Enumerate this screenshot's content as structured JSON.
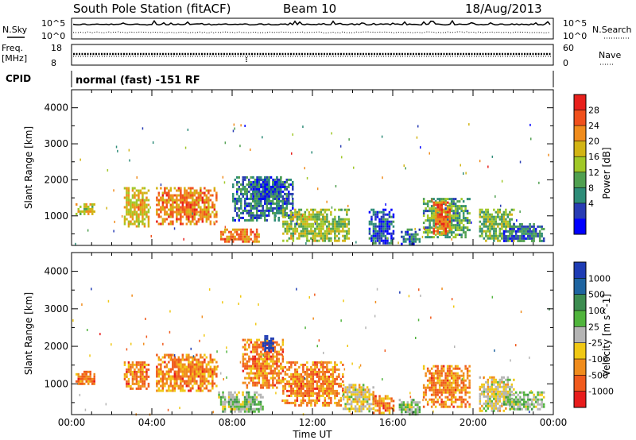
{
  "header": {
    "station": "South Pole Station (fitACF)",
    "beam": "Beam 10",
    "date": "18/Aug/2013"
  },
  "top_panels": {
    "nsky_label": "N.Sky",
    "nsky_ticks": [
      "10^5",
      "10^0"
    ],
    "nsearch_label": "N.Search",
    "nsearch_ticks": [
      "10^5",
      "10^0"
    ],
    "freq_label_1": "Freq.",
    "freq_label_2": "[MHz]",
    "freq_ticks": [
      "18",
      "8"
    ],
    "nave_label": "Nave",
    "nave_ticks": [
      "60",
      "0"
    ],
    "cpid_label": "CPID",
    "cpid_text": "normal (fast) -151 RF"
  },
  "x_axis": {
    "title": "Time UT",
    "ticks": [
      "00:00",
      "04:00",
      "08:00",
      "12:00",
      "16:00",
      "20:00",
      "00:00"
    ]
  },
  "power_colorbar": {
    "title": "Power [dB]",
    "labels": [
      "28",
      "24",
      "20",
      "16",
      "12",
      "8",
      "4"
    ],
    "colors": [
      "#e8201c",
      "#f0501c",
      "#f08c1c",
      "#d2b414",
      "#a0c828",
      "#50a050",
      "#2d8c78",
      "#283cb4",
      "#0000ff"
    ]
  },
  "velocity_colorbar": {
    "title": "Velocity [m s^-1]",
    "labels": [
      "1000",
      "500",
      "100",
      "25",
      "-25",
      "-100",
      "-500",
      "-1000"
    ],
    "colors": [
      "#1e3cb4",
      "#1e64a0",
      "#3c8c50",
      "#50b43c",
      "#b4b4b4",
      "#f0c814",
      "#f08c1c",
      "#f05a1c",
      "#e81c1c"
    ]
  },
  "chart_data": [
    {
      "type": "heatmap",
      "name": "power",
      "xlabel": "Time UT",
      "ylabel": "Slant Range [km]",
      "xlim": [
        0,
        24
      ],
      "ylim": [
        180,
        4500
      ],
      "yticks": [
        "1000",
        "2000",
        "3000",
        "4000"
      ],
      "zlabel": "Power [dB]",
      "zlim": [
        0,
        32
      ],
      "blobs": [
        {
          "t0": 0.2,
          "t1": 1.1,
          "r0": 1050,
          "r1": 1350,
          "v": 18
        },
        {
          "t0": 2.6,
          "t1": 3.8,
          "r0": 700,
          "r1": 1800,
          "v": 20
        },
        {
          "t0": 4.2,
          "t1": 7.2,
          "r0": 800,
          "r1": 1800,
          "v": 24
        },
        {
          "t0": 7.4,
          "t1": 9.3,
          "r0": 300,
          "r1": 650,
          "v": 24
        },
        {
          "t0": 8.0,
          "t1": 11.0,
          "r0": 900,
          "r1": 2100,
          "v": 8
        },
        {
          "t0": 9.0,
          "t1": 10.5,
          "r0": 1500,
          "r1": 2100,
          "v": 6
        },
        {
          "t0": 10.5,
          "t1": 13.8,
          "r0": 300,
          "r1": 1200,
          "v": 16
        },
        {
          "t0": 14.8,
          "t1": 16.0,
          "r0": 250,
          "r1": 1200,
          "v": 6
        },
        {
          "t0": 16.4,
          "t1": 17.3,
          "r0": 250,
          "r1": 650,
          "v": 8
        },
        {
          "t0": 17.5,
          "t1": 19.8,
          "r0": 400,
          "r1": 1500,
          "v": 12
        },
        {
          "t0": 18.0,
          "t1": 18.8,
          "r0": 500,
          "r1": 1400,
          "v": 24
        },
        {
          "t0": 20.3,
          "t1": 22.0,
          "r0": 300,
          "r1": 1200,
          "v": 14
        },
        {
          "t0": 21.5,
          "t1": 23.5,
          "r0": 300,
          "r1": 800,
          "v": 8
        }
      ]
    },
    {
      "type": "heatmap",
      "name": "velocity",
      "xlabel": "Time UT",
      "ylabel": "Slant Range [km]",
      "xlim": [
        0,
        24
      ],
      "ylim": [
        180,
        4500
      ],
      "yticks": [
        "1000",
        "2000",
        "3000",
        "4000"
      ],
      "zlabel": "Velocity [m s^-1]",
      "zlim": [
        -1000,
        1000
      ],
      "blobs": [
        {
          "t0": 0.2,
          "t1": 1.1,
          "r0": 1000,
          "r1": 1350,
          "v": -500
        },
        {
          "t0": 2.6,
          "t1": 3.8,
          "r0": 900,
          "r1": 1600,
          "v": -500
        },
        {
          "t0": 4.2,
          "t1": 7.2,
          "r0": 800,
          "r1": 1800,
          "v": -500
        },
        {
          "t0": 7.3,
          "t1": 9.5,
          "r0": 250,
          "r1": 800,
          "v": 100
        },
        {
          "t0": 8.5,
          "t1": 10.5,
          "r0": 900,
          "r1": 2200,
          "v": -500
        },
        {
          "t0": 9.5,
          "t1": 10.0,
          "r0": 1900,
          "r1": 2300,
          "v": 1000
        },
        {
          "t0": 10.5,
          "t1": 13.5,
          "r0": 400,
          "r1": 1600,
          "v": -500
        },
        {
          "t0": 13.5,
          "t1": 15.0,
          "r0": 300,
          "r1": 1000,
          "v": -100
        },
        {
          "t0": 15.0,
          "t1": 16.0,
          "r0": 250,
          "r1": 700,
          "v": -500
        },
        {
          "t0": 16.3,
          "t1": 17.3,
          "r0": 200,
          "r1": 600,
          "v": 100
        },
        {
          "t0": 17.5,
          "t1": 19.8,
          "r0": 400,
          "r1": 1500,
          "v": -500
        },
        {
          "t0": 20.3,
          "t1": 22.0,
          "r0": 300,
          "r1": 1200,
          "v": -100
        },
        {
          "t0": 21.5,
          "t1": 23.5,
          "r0": 300,
          "r1": 800,
          "v": 100
        }
      ]
    }
  ]
}
